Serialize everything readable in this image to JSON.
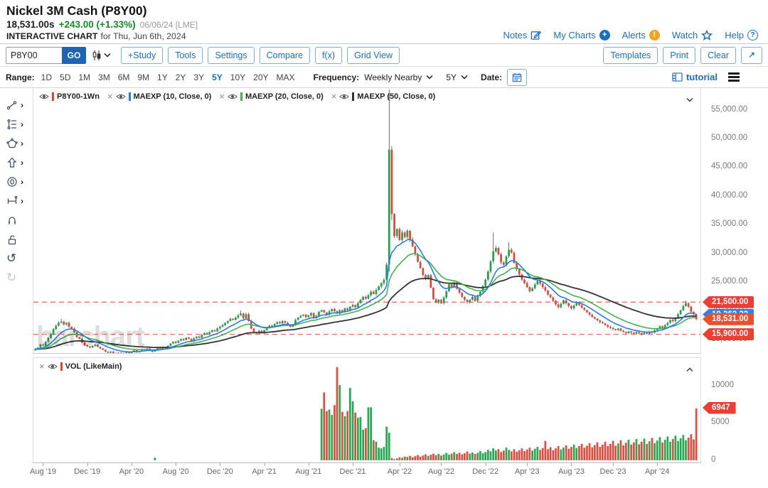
{
  "header": {
    "title": "Nickel 3M Cash (P8Y00)",
    "price": "18,531.00s",
    "change": "+243.00 (+1.33%)",
    "date_source": "06/06/24 [LME]",
    "chart_label": "INTERACTIVE CHART",
    "chart_for": "for Thu, Jun 6th, 2024",
    "links": [
      "Notes",
      "My Charts",
      "Alerts",
      "Watch",
      "Help"
    ]
  },
  "toolbar": {
    "symbol_value": "P8Y00",
    "go_label": "GO",
    "buttons_left": [
      "+Study",
      "Tools",
      "Settings",
      "Compare",
      "f(x)",
      "Grid View"
    ],
    "buttons_right": [
      "Templates",
      "Print",
      "Clear"
    ]
  },
  "range_bar": {
    "range_label": "Range:",
    "ranges": [
      "1D",
      "5D",
      "1M",
      "3M",
      "6M",
      "9M",
      "1Y",
      "2Y",
      "3Y",
      "5Y",
      "10Y",
      "20Y",
      "MAX"
    ],
    "selected_range": "5Y",
    "frequency_label": "Frequency:",
    "frequency_value": "Weekly Nearby",
    "period_value": "5Y",
    "date_label": "Date:",
    "tutorial_label": "tutorial"
  },
  "legend": {
    "main": [
      {
        "label": "P8Y00-1Wn",
        "color": "#e2443b"
      },
      {
        "label": "MAEXP (10, Close, 0)",
        "color": "#2a7de1"
      },
      {
        "label": "MAEXP (20, Close, 0)",
        "color": "#45b054"
      },
      {
        "label": "MAEXP (50, Close, 0)",
        "color": "#333333"
      }
    ],
    "volume": {
      "label": "VOL (LikeMain)",
      "color": "#e2443b"
    }
  },
  "watermark": "barchart",
  "colors": {
    "candle_up": "#1fa24a",
    "candle_down": "#df4539",
    "vol_up": "#23a94f",
    "vol_down": "#e64a3e",
    "alert_badge": "#ee3e33",
    "price_badge": "#e8512e",
    "ema_badge": "#2f80ed",
    "alert_line": "#f26a6a"
  },
  "chart_data": {
    "type": "candlestick+volume",
    "title": "Nickel 3M Cash (P8Y00), Weekly Nearby, 5Y",
    "legend_position": "top-left",
    "grid": false,
    "y_ticks": [
      55000,
      50000,
      45000,
      40000,
      35000,
      30000,
      25000,
      20000,
      15000
    ],
    "y_tick_labels": [
      "55,000.00",
      "50,000.00",
      "45,000.00",
      "40,000.00",
      "35,000.00",
      "30,000.00",
      "25,000.00",
      "20,000.00",
      "15,000.00"
    ],
    "vol_ticks": [
      0,
      5000,
      10000
    ],
    "price_line": 18531,
    "alert_lines": [
      21500,
      15900
    ],
    "vol_badge": 6947,
    "ema_periods": [
      10,
      20,
      50
    ],
    "x_ticks": [
      {
        "label": "Aug '19",
        "week": 3
      },
      {
        "label": "Dec '19",
        "week": 20
      },
      {
        "label": "Apr '20",
        "week": 37
      },
      {
        "label": "Aug '20",
        "week": 54
      },
      {
        "label": "Dec '20",
        "week": 71
      },
      {
        "label": "Apr '21",
        "week": 88
      },
      {
        "label": "Aug '21",
        "week": 105
      },
      {
        "label": "Dec '21",
        "week": 122
      },
      {
        "label": "Apr '22",
        "week": 140
      },
      {
        "label": "Aug '22",
        "week": 156
      },
      {
        "label": "Dec '22",
        "week": 173
      },
      {
        "label": "Apr '23",
        "week": 189
      },
      {
        "label": "Aug '23",
        "week": 206
      },
      {
        "label": "Dec '23",
        "week": 222
      },
      {
        "label": "Apr '24",
        "week": 239
      }
    ],
    "closes": [
      13300,
      13600,
      14100,
      13900,
      14600,
      15300,
      15900,
      16800,
      17400,
      17900,
      18100,
      17600,
      17900,
      17200,
      16900,
      16200,
      15400,
      15100,
      14500,
      14000,
      13800,
      13600,
      13900,
      14100,
      13700,
      13400,
      13200,
      12900,
      12700,
      12900,
      12600,
      12400,
      12700,
      12500,
      12600,
      12800,
      12600,
      12900,
      13100,
      12800,
      13000,
      13300,
      13200,
      13400,
      13100,
      12900,
      13200,
      13500,
      13400,
      13700,
      13600,
      13900,
      14300,
      14600,
      14400,
      14800,
      15100,
      14900,
      15300,
      15100,
      14700,
      15200,
      15500,
      15300,
      15800,
      16100,
      15900,
      16300,
      16600,
      16400,
      16900,
      17200,
      17500,
      17900,
      18200,
      18600,
      18400,
      18800,
      19200,
      19500,
      18700,
      19400,
      18200,
      16900,
      16300,
      16100,
      16500,
      16200,
      16600,
      17000,
      17400,
      17200,
      17700,
      18000,
      17800,
      18200,
      17900,
      17500,
      17200,
      17600,
      18400,
      18800,
      19100,
      19300,
      18900,
      19200,
      19600,
      18700,
      19100,
      19800,
      20100,
      19700,
      19300,
      19900,
      20300,
      19900,
      19500,
      20100,
      19800,
      20400,
      20100,
      20700,
      21000,
      20600,
      21300,
      21900,
      22400,
      22100,
      22700,
      23300,
      22900,
      23600,
      24200,
      24800,
      25400,
      28000,
      48000,
      36800,
      33000,
      34200,
      32300,
      33600,
      32800,
      33900,
      32400,
      31200,
      29800,
      28500,
      27400,
      26200,
      25600,
      26200,
      24000,
      22000,
      21400,
      21900,
      21300,
      22300,
      23400,
      24600,
      24100,
      24900,
      23800,
      23100,
      22400,
      21900,
      21500,
      21900,
      22400,
      21700,
      22600,
      23300,
      24300,
      25400,
      26800,
      28600,
      30300,
      30900,
      29800,
      28400,
      28000,
      29500,
      30600,
      30100,
      28300,
      27200,
      26300,
      25400,
      24800,
      24100,
      23400,
      23900,
      24600,
      25200,
      24700,
      24100,
      23500,
      22800,
      22300,
      21700,
      21100,
      20600,
      21200,
      21800,
      21300,
      20800,
      20400,
      20900,
      21400,
      21000,
      20500,
      20100,
      19700,
      19300,
      18900,
      18600,
      18300,
      18000,
      17800,
      17500,
      17200,
      17000,
      16800,
      16600,
      16900,
      16500,
      16300,
      16100,
      16400,
      16200,
      16000,
      16300,
      16100,
      15900,
      16200,
      16000,
      16400,
      16200,
      16600,
      16900,
      17300,
      17000,
      17500,
      17900,
      18400,
      18200,
      18800,
      19400,
      20100,
      20800,
      21300,
      20700,
      19800,
      19400,
      18531
    ],
    "volumes": [
      0,
      0,
      0,
      0,
      0,
      0,
      0,
      0,
      0,
      0,
      0,
      0,
      0,
      0,
      0,
      0,
      0,
      0,
      0,
      0,
      0,
      0,
      0,
      0,
      0,
      0,
      0,
      0,
      0,
      0,
      0,
      0,
      0,
      0,
      0,
      0,
      0,
      0,
      0,
      0,
      0,
      0,
      0,
      0,
      0,
      0,
      350,
      0,
      0,
      0,
      0,
      0,
      0,
      0,
      0,
      0,
      0,
      0,
      0,
      0,
      0,
      0,
      0,
      0,
      0,
      0,
      0,
      0,
      0,
      0,
      0,
      0,
      0,
      0,
      0,
      0,
      0,
      0,
      0,
      0,
      0,
      0,
      0,
      0,
      0,
      0,
      0,
      0,
      0,
      0,
      0,
      0,
      0,
      0,
      0,
      0,
      0,
      0,
      0,
      0,
      0,
      0,
      0,
      0,
      0,
      0,
      0,
      0,
      0,
      0,
      6900,
      9100,
      6600,
      6800,
      6100,
      7400,
      12500,
      10100,
      6500,
      5900,
      6600,
      9700,
      7900,
      6400,
      5700,
      5800,
      4100,
      4300,
      7100,
      7100,
      2700,
      2500,
      1700,
      1600,
      1800,
      4500,
      3700,
      300,
      150,
      250,
      400,
      350,
      500,
      450,
      600,
      400,
      550,
      700,
      500,
      650,
      800,
      600,
      750,
      900,
      700,
      850,
      650,
      800,
      1000,
      750,
      900,
      1100,
      850,
      1000,
      800,
      950,
      1200,
      900,
      1050,
      850,
      1000,
      1250,
      950,
      1100,
      1400,
      1200,
      1600,
      1300,
      1500,
      1100,
      1300,
      1700,
      1400,
      1200,
      1500,
      1150,
      1350,
      1600,
      1250,
      1450,
      1700,
      1300,
      1550,
      1800,
      1400,
      1650,
      2600,
      1500,
      1750,
      1350,
      1600,
      1900,
      1450,
      1700,
      2000,
      1550,
      1800,
      2100,
      1650,
      1900,
      2200,
      1700,
      1950,
      2300,
      1750,
      2050,
      2400,
      1800,
      2100,
      2500,
      1900,
      2200,
      2600,
      1950,
      2250,
      2700,
      2000,
      2350,
      2750,
      2100,
      2400,
      2850,
      2150,
      2500,
      2900,
      2200,
      2550,
      3000,
      2300,
      2650,
      3100,
      2400,
      2750,
      3200,
      2500,
      2850,
      3300,
      2600,
      2950,
      3400,
      2700,
      3050,
      3500,
      2800,
      6947
    ],
    "overrides": {
      "10": {
        "high": 18600
      },
      "79": {
        "high": 20000
      },
      "136": {
        "high": 58500,
        "low": 26800
      },
      "137": {
        "high": 48600,
        "low": 35800
      },
      "176": {
        "high": 33600
      },
      "182": {
        "high": 31900
      },
      "250": {
        "high": 21700
      }
    }
  }
}
